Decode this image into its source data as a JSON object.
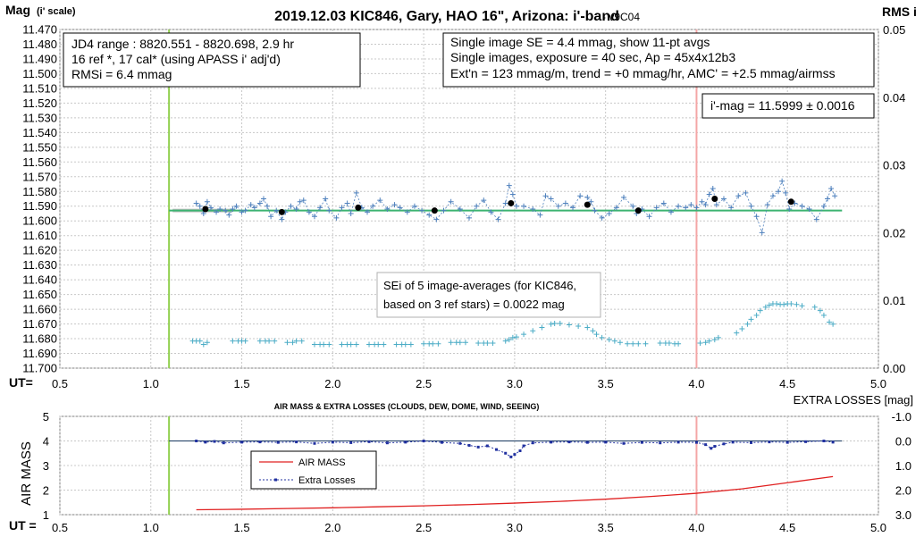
{
  "chart_data": [
    {
      "type": "scatter",
      "title": "2019.12.03 KIC846, Gary, HAO 16\", Arizona: i'-band",
      "version": "- v9C04",
      "ylabel_main": "Mag",
      "ylabel_sub": "(i' scale)",
      "y2label": "RMS i",
      "xlabel": "UT=",
      "xlim": [
        0.5,
        5.0
      ],
      "ylim": [
        11.47,
        11.7
      ],
      "y2lim": [
        0.0,
        0.05
      ],
      "grid": true,
      "y_ticks": [
        "11.470",
        "11.480",
        "11.490",
        "11.500",
        "11.510",
        "11.520",
        "11.530",
        "11.540",
        "11.550",
        "11.560",
        "11.570",
        "11.580",
        "11.590",
        "11.600",
        "11.610",
        "11.620",
        "11.630",
        "11.640",
        "11.650",
        "11.660",
        "11.670",
        "11.680",
        "11.690",
        "11.700"
      ],
      "y2_ticks": [
        "0.05",
        "0.04",
        "0.03",
        "0.02",
        "0.01",
        "0.00"
      ],
      "x_ticks": [
        "0.5",
        "1.0",
        "1.5",
        "2.0",
        "2.5",
        "3.0",
        "3.5",
        "4.0",
        "4.5",
        "5.0"
      ],
      "vertical_markers": [
        {
          "x": 1.1,
          "color": "#92d050"
        },
        {
          "x": 4.0,
          "color": "#f4a6a6"
        }
      ],
      "fit_line": {
        "x": [
          1.1,
          4.8
        ],
        "y": [
          11.593,
          11.593
        ],
        "color": "#3cb371"
      },
      "info_left": [
        "JD4 range : 8820.551 - 8820.698, 2.9  hr",
        "16 ref *, 17 cal* (using APASS i' adj'd)",
        "RMSi = 6.4 mmag"
      ],
      "info_right": [
        "Single image SE = 4.4 mmag, show 11-pt avgs",
        "Single images, exposure = 40 sec, Ap = 45x4x12b3",
        "Ext'n = 123 mmag/m, trend = +0 mmag/hr, AMC' = +2.5 mmag/airmss"
      ],
      "mag_box": "i'-mag = 11.5999 ± 0.0016",
      "sei_box": [
        "SEi of 5 image-averages (for KIC846,",
        "based on 3 ref stars) = 0.0022 mag"
      ],
      "series": [
        {
          "name": "",
          "kind": "single-images",
          "color": "#4f81bd",
          "x": [
            1.25,
            1.27,
            1.29,
            1.31,
            1.33,
            1.36,
            1.38,
            1.41,
            1.43,
            1.45,
            1.47,
            1.5,
            1.52,
            1.55,
            1.57,
            1.6,
            1.62,
            1.64,
            1.66,
            1.69,
            1.72,
            1.74,
            1.77,
            1.8,
            1.82,
            1.84,
            1.87,
            1.9,
            1.93,
            1.96,
            1.98,
            2.02,
            2.05,
            2.08,
            2.1,
            2.13,
            2.16,
            2.19,
            2.22,
            2.26,
            2.3,
            2.34,
            2.37,
            2.41,
            2.45,
            2.49,
            2.53,
            2.57,
            2.61,
            2.65,
            2.7,
            2.75,
            2.79,
            2.83,
            2.87,
            2.91,
            2.95,
            2.97,
            2.99,
            3.01,
            3.05,
            3.1,
            3.14,
            3.17,
            3.2,
            3.24,
            3.28,
            3.32,
            3.36,
            3.4,
            3.42,
            3.44,
            3.48,
            3.52,
            3.56,
            3.6,
            3.65,
            3.67,
            3.7,
            3.74,
            3.78,
            3.82,
            3.86,
            3.9,
            3.94,
            3.97,
            4.0,
            4.03,
            4.05,
            4.07,
            4.09,
            4.11,
            4.15,
            4.19,
            4.23,
            4.27,
            4.3,
            4.33,
            4.36,
            4.39,
            4.42,
            4.45,
            4.47,
            4.49,
            4.51,
            4.54,
            4.58,
            4.62,
            4.66,
            4.7,
            4.72,
            4.74,
            4.76
          ],
          "y": [
            11.588,
            11.59,
            11.595,
            11.587,
            11.591,
            11.594,
            11.592,
            11.593,
            11.596,
            11.592,
            11.59,
            11.594,
            11.593,
            11.589,
            11.591,
            11.588,
            11.585,
            11.59,
            11.597,
            11.593,
            11.599,
            11.594,
            11.59,
            11.592,
            11.587,
            11.586,
            11.594,
            11.597,
            11.591,
            11.585,
            11.593,
            11.598,
            11.591,
            11.588,
            11.595,
            11.581,
            11.591,
            11.594,
            11.59,
            11.586,
            11.592,
            11.589,
            11.591,
            11.594,
            11.59,
            11.593,
            11.596,
            11.599,
            11.593,
            11.587,
            11.592,
            11.598,
            11.59,
            11.586,
            11.594,
            11.599,
            11.588,
            11.576,
            11.582,
            11.59,
            11.59,
            11.592,
            11.596,
            11.583,
            11.585,
            11.59,
            11.588,
            11.591,
            11.583,
            11.584,
            11.587,
            11.593,
            11.598,
            11.595,
            11.591,
            11.584,
            11.59,
            11.595,
            11.592,
            11.597,
            11.591,
            11.588,
            11.594,
            11.59,
            11.591,
            11.589,
            11.591,
            11.587,
            11.589,
            11.582,
            11.578,
            11.589,
            11.585,
            11.591,
            11.583,
            11.581,
            11.59,
            11.597,
            11.608,
            11.589,
            11.583,
            11.58,
            11.573,
            11.581,
            11.592,
            11.588,
            11.59,
            11.592,
            11.599,
            11.59,
            11.585,
            11.578,
            11.583
          ]
        },
        {
          "name": "",
          "kind": "11-pt averages",
          "color": "#000000",
          "x": [
            1.3,
            1.72,
            2.14,
            2.56,
            2.98,
            3.4,
            3.68,
            4.1,
            4.52
          ],
          "y": [
            11.592,
            11.594,
            11.591,
            11.593,
            11.588,
            11.589,
            11.593,
            11.585,
            11.587
          ]
        },
        {
          "name": "",
          "kind": "RMS",
          "axis": "y2",
          "color": "#4bacc6",
          "x": [
            1.23,
            1.25,
            1.27,
            1.29,
            1.31,
            1.45,
            1.48,
            1.5,
            1.52,
            1.6,
            1.63,
            1.65,
            1.68,
            1.75,
            1.78,
            1.8,
            1.83,
            1.9,
            1.93,
            1.95,
            1.98,
            2.05,
            2.08,
            2.1,
            2.13,
            2.2,
            2.23,
            2.25,
            2.28,
            2.35,
            2.38,
            2.4,
            2.43,
            2.5,
            2.53,
            2.55,
            2.58,
            2.65,
            2.68,
            2.7,
            2.73,
            2.8,
            2.83,
            2.85,
            2.88,
            2.95,
            2.97,
            2.99,
            3.01,
            3.05,
            3.1,
            3.15,
            3.2,
            3.22,
            3.25,
            3.3,
            3.35,
            3.4,
            3.43,
            3.45,
            3.48,
            3.52,
            3.55,
            3.58,
            3.62,
            3.65,
            3.68,
            3.72,
            3.8,
            3.83,
            3.85,
            3.88,
            3.9,
            4.02,
            4.05,
            4.07,
            4.1,
            4.12,
            4.22,
            4.25,
            4.28,
            4.3,
            4.33,
            4.35,
            4.38,
            4.4,
            4.42,
            4.44,
            4.46,
            4.48,
            4.5,
            4.52,
            4.55,
            4.58,
            4.65,
            4.68,
            4.7,
            4.73,
            4.75
          ],
          "y": [
            0.004,
            0.004,
            0.004,
            0.0035,
            0.0038,
            0.004,
            0.004,
            0.004,
            0.004,
            0.004,
            0.004,
            0.004,
            0.004,
            0.0038,
            0.0038,
            0.004,
            0.004,
            0.0035,
            0.0035,
            0.0035,
            0.0035,
            0.0035,
            0.0035,
            0.0035,
            0.0035,
            0.0035,
            0.0035,
            0.0035,
            0.0035,
            0.0035,
            0.0035,
            0.0035,
            0.0035,
            0.0036,
            0.0036,
            0.0036,
            0.0036,
            0.0038,
            0.0038,
            0.0038,
            0.0038,
            0.0037,
            0.0037,
            0.0037,
            0.0037,
            0.004,
            0.0042,
            0.0045,
            0.0046,
            0.005,
            0.0055,
            0.006,
            0.0065,
            0.0066,
            0.0066,
            0.0064,
            0.0062,
            0.006,
            0.0055,
            0.005,
            0.0045,
            0.0042,
            0.004,
            0.0038,
            0.0036,
            0.0036,
            0.0036,
            0.0036,
            0.0037,
            0.0037,
            0.0037,
            0.0036,
            0.0036,
            0.0037,
            0.0038,
            0.004,
            0.0042,
            0.0045,
            0.0052,
            0.0058,
            0.0065,
            0.0072,
            0.0078,
            0.0085,
            0.009,
            0.0093,
            0.0095,
            0.0095,
            0.0094,
            0.0094,
            0.0095,
            0.0095,
            0.0094,
            0.0092,
            0.009,
            0.0085,
            0.0078,
            0.0068,
            0.0065
          ]
        }
      ]
    },
    {
      "type": "line",
      "title": "AIR MASS & EXTRA LOSSES (CLOUDS, DEW, DOME, WIND, SEEING)",
      "ylabel": "AIR MASS",
      "y2label": "EXTRA LOSSES [mag]",
      "xlabel": "UT =",
      "xlim": [
        0.5,
        5.0
      ],
      "ylim": [
        1,
        5
      ],
      "y2lim": [
        -1.0,
        3.0
      ],
      "y_ticks": [
        "5",
        "4",
        "3",
        "2",
        "1"
      ],
      "y2_ticks": [
        "-1.0",
        "0.0",
        "1.0",
        "2.0",
        "3.0"
      ],
      "x_ticks": [
        "0.5",
        "1.0",
        "1.5",
        "2.0",
        "2.5",
        "3.0",
        "3.5",
        "4.0",
        "4.5",
        "5.0"
      ],
      "grid": true,
      "vertical_markers": [
        {
          "x": 1.1,
          "color": "#92d050"
        },
        {
          "x": 4.0,
          "color": "#f4a6a6"
        }
      ],
      "zero_line": {
        "y2": 0.0,
        "color": "#17375e"
      },
      "legend": {
        "placement": "center-left",
        "entries": [
          "AIR MASS",
          "Extra Losses"
        ]
      },
      "series": [
        {
          "name": "AIR MASS",
          "axis": "y",
          "color": "#e02020",
          "x": [
            1.25,
            1.5,
            1.75,
            2.0,
            2.25,
            2.5,
            2.75,
            3.0,
            3.25,
            3.5,
            3.75,
            4.0,
            4.25,
            4.5,
            4.75
          ],
          "y": [
            1.2,
            1.22,
            1.25,
            1.28,
            1.32,
            1.36,
            1.41,
            1.47,
            1.54,
            1.63,
            1.74,
            1.87,
            2.05,
            2.3,
            2.55
          ]
        },
        {
          "name": "Extra Losses",
          "axis": "y2",
          "color": "#2030a0",
          "x": [
            1.25,
            1.3,
            1.35,
            1.4,
            1.5,
            1.6,
            1.7,
            1.8,
            1.9,
            2.0,
            2.1,
            2.2,
            2.3,
            2.4,
            2.5,
            2.6,
            2.7,
            2.75,
            2.8,
            2.85,
            2.9,
            2.95,
            2.98,
            3.0,
            3.03,
            3.05,
            3.1,
            3.2,
            3.3,
            3.4,
            3.5,
            3.6,
            3.7,
            3.8,
            3.9,
            4.0,
            4.05,
            4.08,
            4.1,
            4.15,
            4.2,
            4.3,
            4.4,
            4.5,
            4.6,
            4.7,
            4.75
          ],
          "y": [
            0.0,
            0.05,
            0.02,
            0.08,
            0.05,
            0.04,
            0.06,
            0.04,
            0.1,
            0.05,
            0.07,
            0.03,
            0.08,
            0.05,
            0.0,
            0.06,
            0.1,
            0.18,
            0.25,
            0.2,
            0.35,
            0.5,
            0.65,
            0.55,
            0.4,
            0.2,
            0.08,
            0.05,
            0.04,
            0.06,
            0.05,
            0.1,
            0.06,
            0.08,
            0.05,
            0.06,
            0.15,
            0.3,
            0.22,
            0.12,
            0.05,
            0.07,
            0.04,
            0.06,
            0.03,
            0.0,
            0.05
          ]
        }
      ]
    }
  ]
}
